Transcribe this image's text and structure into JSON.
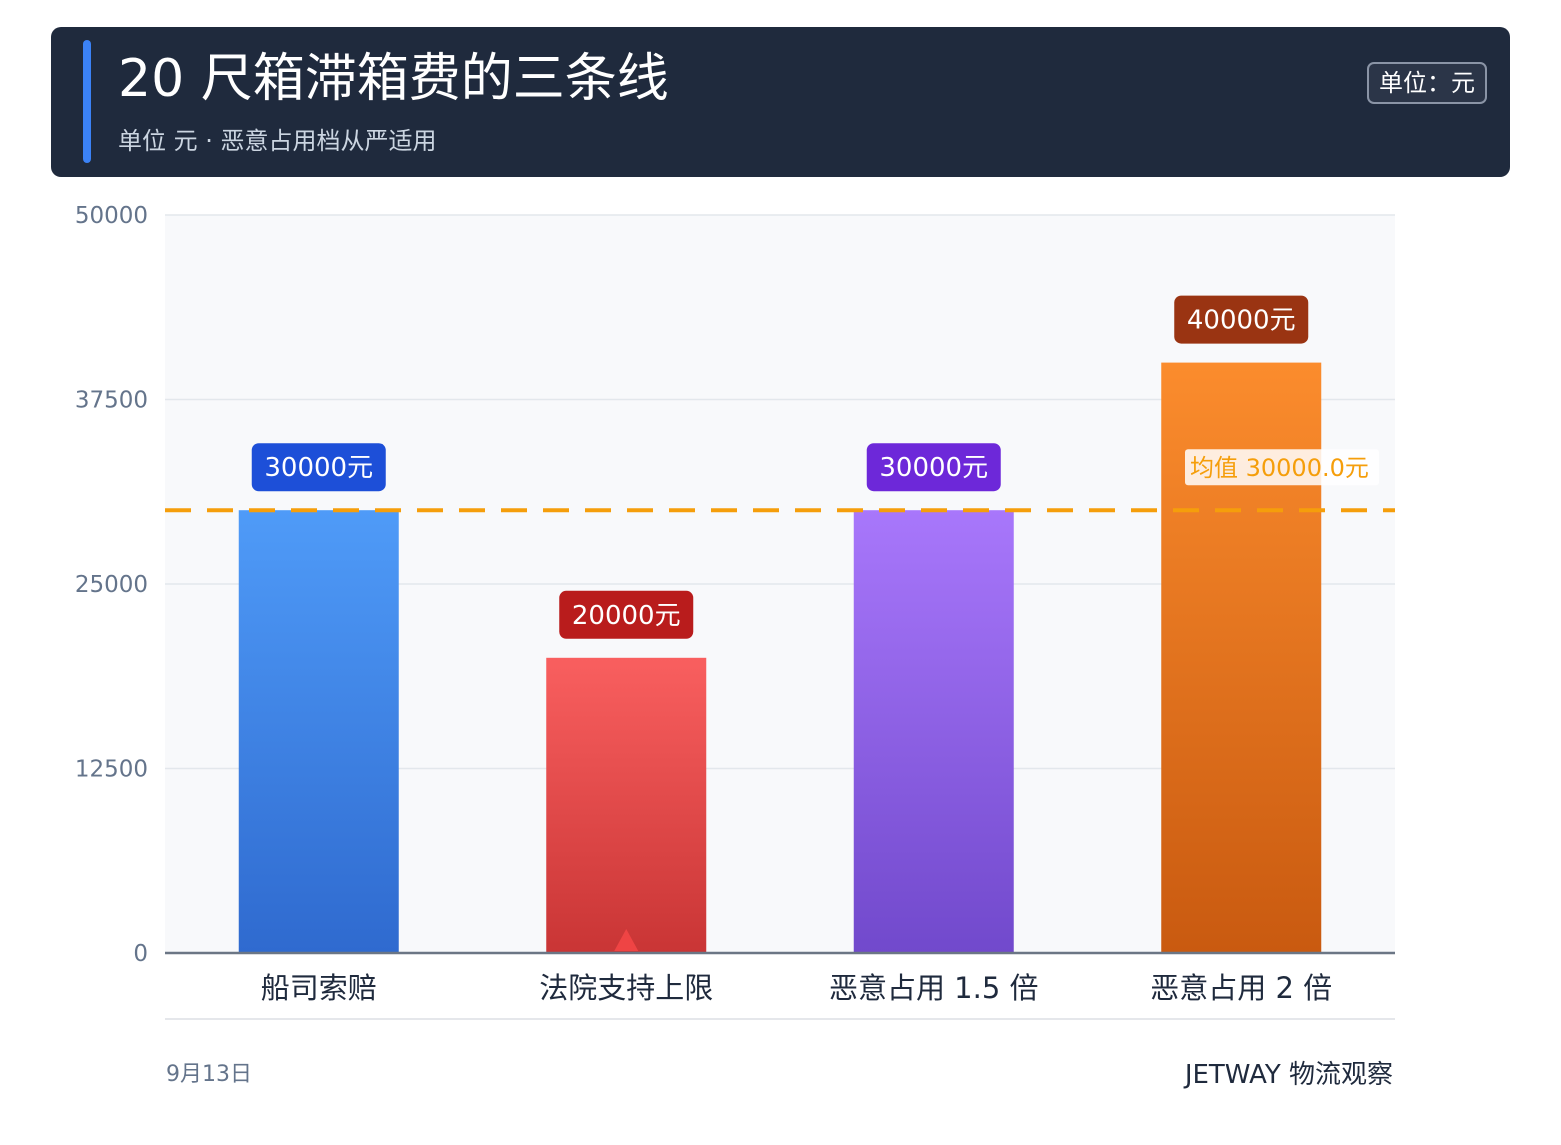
{
  "header": {
    "title": "20 尺箱滞箱费的三条线",
    "subtitle": "单位 元 · 恶意占用档从严适用",
    "unit_badge": "单位：元"
  },
  "chart_data": {
    "type": "bar",
    "categories": [
      "船司索赔",
      "法院支持上限",
      "恶意占用 1.5 倍",
      "恶意占用 2 倍"
    ],
    "values": [
      30000,
      20000,
      30000,
      40000
    ],
    "value_labels": [
      "30000元",
      "20000元",
      "30000元",
      "40000元"
    ],
    "ylim": [
      0,
      50000
    ],
    "yticks": [
      0,
      12500,
      25000,
      37500,
      50000
    ],
    "grid": true,
    "bar_colors": [
      {
        "top": "#4f9bf8",
        "bottom": "#2f6acf",
        "label_bg": "#1d4fd8"
      },
      {
        "top": "#f95f5f",
        "bottom": "#c93535",
        "label_bg": "#b91c1c"
      },
      {
        "top": "#a877fb",
        "bottom": "#7149cc",
        "label_bg": "#6d28d9"
      },
      {
        "top": "#fb8c2d",
        "bottom": "#c95a10",
        "label_bg": "#9a3412"
      }
    ],
    "reference_line": {
      "value": 30000,
      "label": "均值 30000.0元",
      "color": "#f59e0b"
    },
    "marker": {
      "category_index": 1,
      "shape": "triangle",
      "color": "#ef4444"
    }
  },
  "footer": {
    "date": "9月13日",
    "brand": "JETWAY 物流观察"
  }
}
